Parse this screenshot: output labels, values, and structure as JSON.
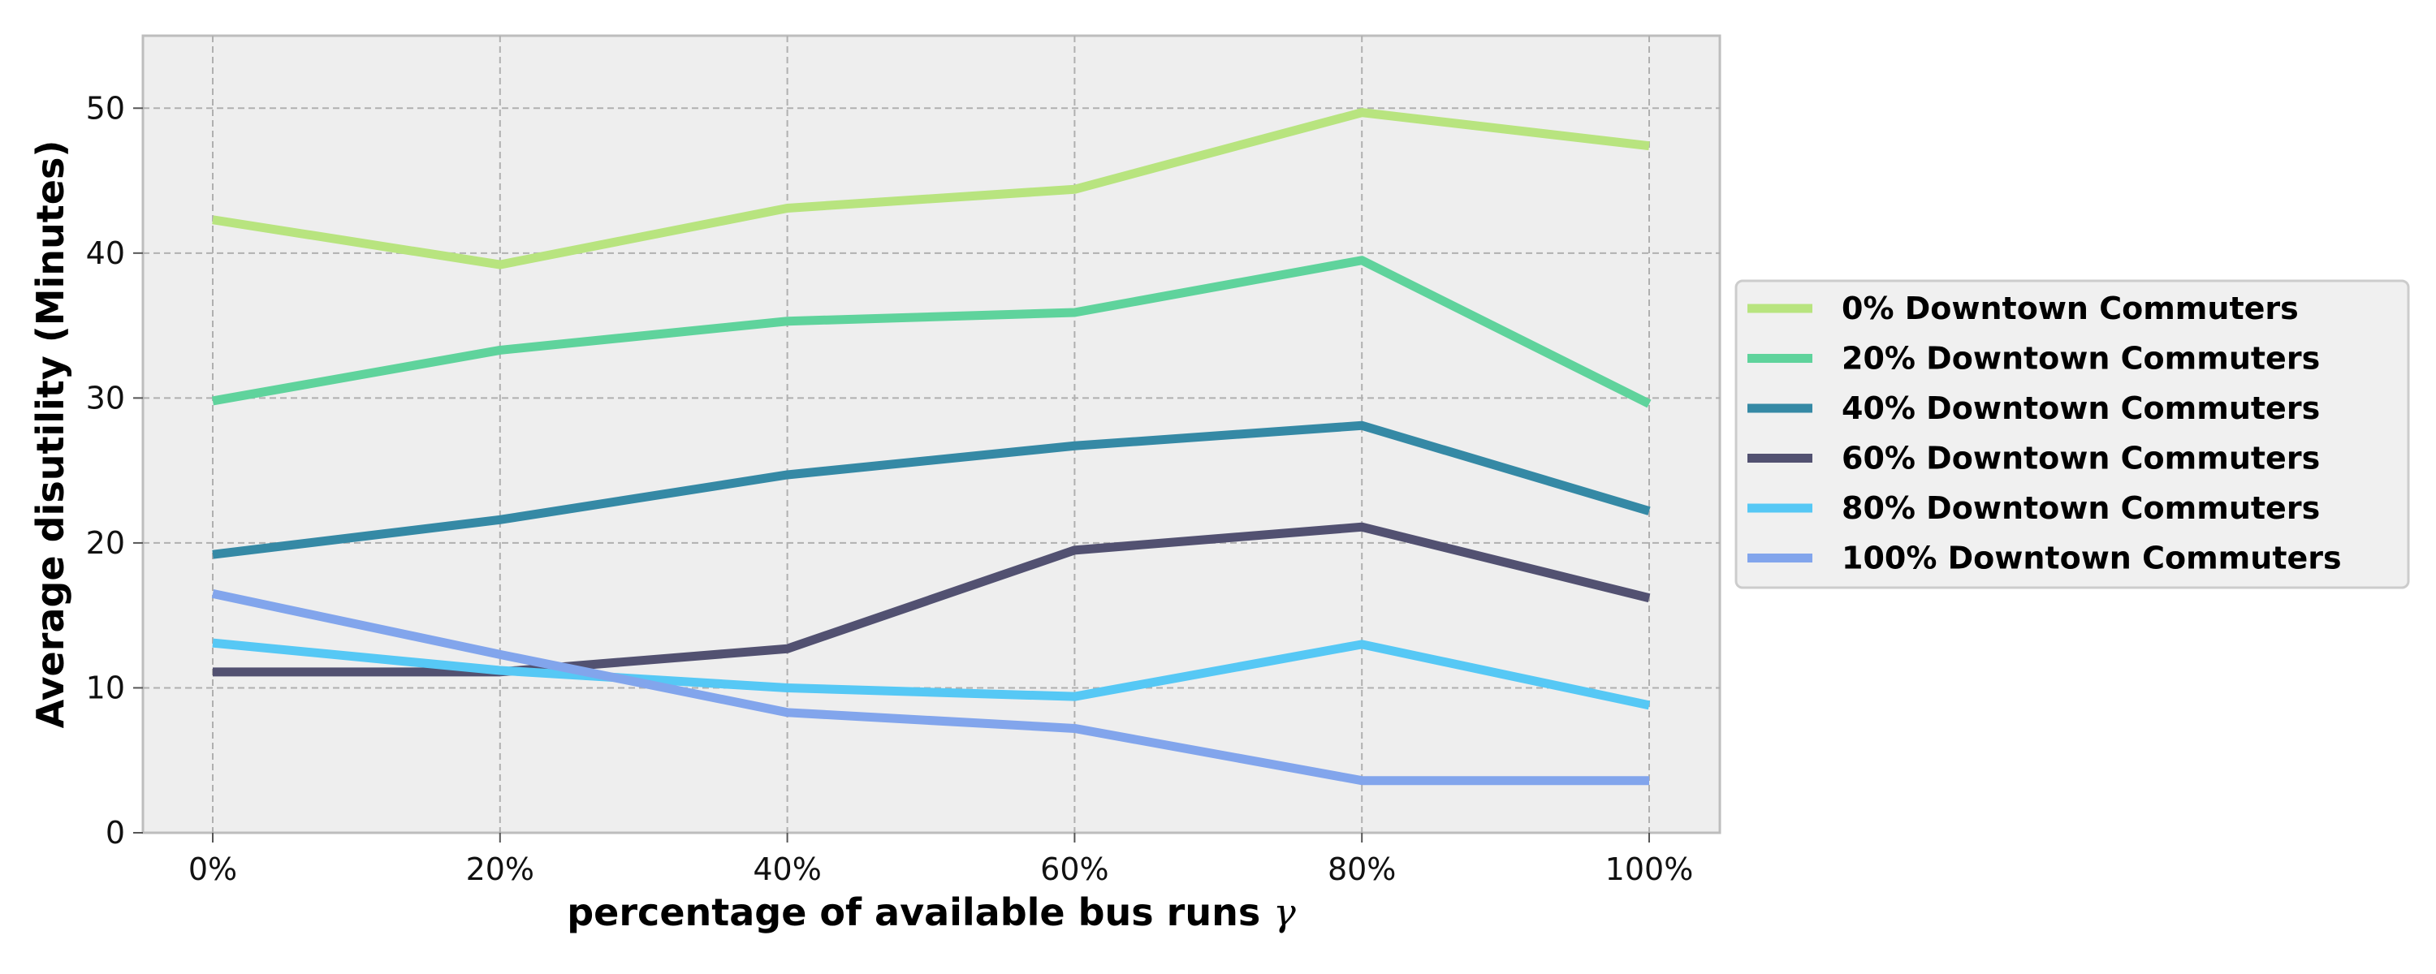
{
  "chart_data": {
    "type": "line",
    "xlabel": "percentage of available bus runs",
    "xlabel_symbol": "γ",
    "ylabel": "Average disutility (Minutes)",
    "categories": [
      "0%",
      "20%",
      "40%",
      "60%",
      "80%",
      "100%"
    ],
    "ylim": [
      0,
      55
    ],
    "yticks": [
      0,
      10,
      20,
      30,
      40,
      50
    ],
    "grid": true,
    "legend_position": "right",
    "series": [
      {
        "name": "0% Downtown Commuters",
        "color": "#b8e47f",
        "values": [
          42.3,
          39.2,
          43.1,
          44.4,
          49.7,
          47.4
        ]
      },
      {
        "name": "20% Downtown Commuters",
        "color": "#5fd39c",
        "values": [
          29.8,
          33.3,
          35.3,
          35.9,
          39.5,
          29.6
        ]
      },
      {
        "name": "40% Downtown Commuters",
        "color": "#3589a5",
        "values": [
          19.2,
          21.6,
          24.7,
          26.7,
          28.1,
          22.2
        ]
      },
      {
        "name": "60% Downtown Commuters",
        "color": "#525171",
        "values": [
          11.1,
          11.1,
          12.7,
          19.5,
          21.1,
          16.2
        ]
      },
      {
        "name": "80% Downtown Commuters",
        "color": "#56c8f5",
        "values": [
          13.1,
          11.2,
          10.0,
          9.4,
          13.0,
          8.8
        ]
      },
      {
        "name": "100% Downtown Commuters",
        "color": "#82a5ec",
        "values": [
          16.5,
          12.3,
          8.3,
          7.2,
          3.6,
          3.6
        ]
      }
    ]
  }
}
